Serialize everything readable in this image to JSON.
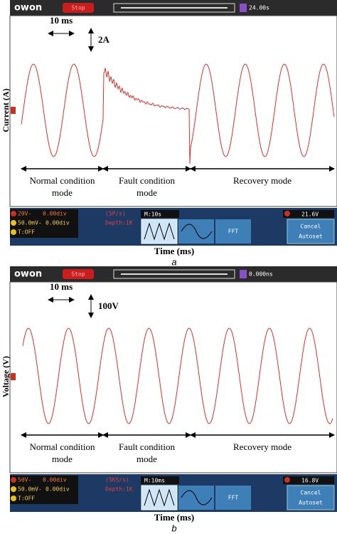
{
  "panels": [
    {
      "top_bar": {
        "logo": "owon",
        "state": "Stop",
        "time": "24.00s"
      },
      "y_label": "Current (A)",
      "annotations": {
        "time_scale": "10 ms",
        "amplitude_scale": "2A"
      },
      "modes": [
        [
          "Normal condition",
          "mode"
        ],
        [
          "Fault condition",
          "mode"
        ],
        [
          "Recovery mode"
        ]
      ],
      "status": {
        "ch1": [
          "20V-",
          "0.00div"
        ],
        "ch2": [
          "50.0mV-",
          "0.00div"
        ],
        "trigger": "T:OFF",
        "rate": "(5P/s)",
        "depth": "Depth:1K",
        "timebase": "M:10s",
        "fft": "FFT",
        "trigger_level": "21.6V",
        "buttons": [
          "Cancel",
          "Autoset"
        ]
      },
      "x_label": "Time (ms)",
      "caption": "a"
    },
    {
      "top_bar": {
        "logo": "owon",
        "state": "Stop",
        "time": "0.000ns"
      },
      "y_label": "Voltage (V)",
      "annotations": {
        "time_scale": "10 ms",
        "amplitude_scale": "100V"
      },
      "modes": [
        [
          "Normal condition",
          "mode"
        ],
        [
          "Fault condition",
          "mode"
        ],
        [
          "Recovery mode"
        ]
      ],
      "status": {
        "ch1": [
          "50V-",
          "0.00div"
        ],
        "ch2": [
          "50.0mV-",
          "0.00div"
        ],
        "trigger": "T:OFF",
        "rate": "(5KS/s)",
        "depth": "Depth:1K",
        "timebase": "M:10ms",
        "fft": "FFT",
        "trigger_level": "16.8V",
        "buttons": [
          "Cancel",
          "Autoset"
        ]
      },
      "x_label": "Time (ms)",
      "caption": "b"
    }
  ]
}
